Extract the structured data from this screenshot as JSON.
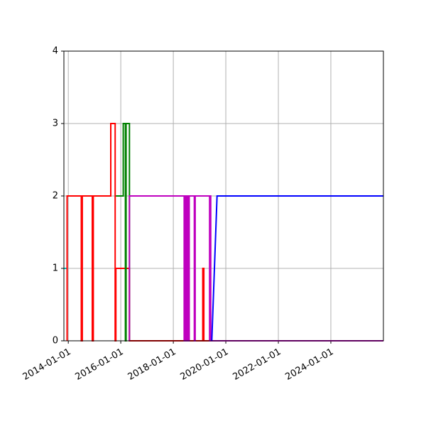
{
  "chart_data": {
    "type": "line",
    "step": true,
    "grid": true,
    "legend": "none",
    "title": "",
    "xlabel": "",
    "ylabel": "",
    "x_scale": "date",
    "xlim": [
      "2013-11-01",
      "2026-01-01"
    ],
    "ylim": [
      0,
      4
    ],
    "x_ticks": [
      "2014-01-01",
      "2016-01-01",
      "2018-01-01",
      "2020-01-01",
      "2022-01-01",
      "2024-01-01"
    ],
    "y_ticks": [
      "0",
      "1",
      "2",
      "3",
      "4"
    ],
    "series": [
      {
        "color": "#00bfbf",
        "points": [
          [
            "2013-11-01",
            1
          ],
          [
            "2013-12-15",
            1
          ],
          [
            "2013-12-15",
            0
          ]
        ]
      },
      {
        "color": "#ff0000",
        "points": [
          [
            "2013-12-15",
            0
          ],
          [
            "2013-12-15",
            2
          ],
          [
            "2014-07-01",
            2
          ],
          [
            "2014-07-01",
            0
          ],
          [
            "2014-07-15",
            0
          ],
          [
            "2014-07-15",
            2
          ],
          [
            "2014-12-01",
            2
          ],
          [
            "2014-12-01",
            0
          ],
          [
            "2014-12-15",
            0
          ],
          [
            "2014-12-15",
            2
          ],
          [
            "2015-08-15",
            2
          ],
          [
            "2015-08-15",
            3
          ],
          [
            "2015-10-15",
            3
          ],
          [
            "2015-10-15",
            0
          ],
          [
            "2015-10-25",
            0
          ],
          [
            "2015-10-25",
            1
          ],
          [
            "2016-05-01",
            1
          ],
          [
            "2016-05-01",
            0
          ],
          [
            "2019-02-15",
            0
          ],
          [
            "2019-02-15",
            1
          ],
          [
            "2019-03-01",
            1
          ],
          [
            "2019-03-01",
            0
          ],
          [
            "2025-12-31",
            0
          ]
        ]
      },
      {
        "color": "#008000",
        "points": [
          [
            "2015-10-25",
            2
          ],
          [
            "2016-02-05",
            2
          ],
          [
            "2016-02-05",
            3
          ],
          [
            "2016-03-05",
            3
          ],
          [
            "2016-03-05",
            0
          ],
          [
            "2016-03-15",
            0
          ],
          [
            "2016-03-15",
            3
          ],
          [
            "2016-05-01",
            3
          ],
          [
            "2016-05-01",
            0
          ]
        ]
      },
      {
        "color": "#bf00bf",
        "points": [
          [
            "2016-05-01",
            0
          ],
          [
            "2016-05-01",
            2
          ],
          [
            "2018-06-01",
            2
          ],
          [
            "2018-06-01",
            0
          ],
          [
            "2018-06-08",
            0
          ],
          [
            "2018-06-08",
            2
          ],
          [
            "2018-06-15",
            2
          ],
          [
            "2018-06-15",
            0
          ],
          [
            "2018-06-22",
            0
          ],
          [
            "2018-06-22",
            2
          ],
          [
            "2018-07-01",
            2
          ],
          [
            "2018-07-01",
            0
          ],
          [
            "2018-07-08",
            0
          ],
          [
            "2018-07-08",
            2
          ],
          [
            "2018-07-15",
            2
          ],
          [
            "2018-07-15",
            0
          ],
          [
            "2018-07-22",
            0
          ],
          [
            "2018-07-22",
            2
          ],
          [
            "2018-07-29",
            2
          ],
          [
            "2018-07-29",
            0
          ],
          [
            "2018-08-10",
            0
          ],
          [
            "2018-08-10",
            2
          ],
          [
            "2018-10-20",
            2
          ],
          [
            "2018-10-20",
            0
          ],
          [
            "2018-11-01",
            0
          ],
          [
            "2018-11-01",
            2
          ],
          [
            "2019-05-20",
            2
          ],
          [
            "2019-05-20",
            0
          ],
          [
            "2019-05-28",
            0
          ],
          [
            "2019-05-28",
            2
          ],
          [
            "2019-06-05",
            2
          ],
          [
            "2019-06-05",
            0
          ],
          [
            "2025-12-31",
            0
          ]
        ]
      },
      {
        "color": "#0000ff",
        "points": [
          [
            "2019-06-20",
            0
          ],
          [
            "2019-09-01",
            2
          ],
          [
            "2025-12-31",
            2
          ]
        ]
      }
    ]
  }
}
